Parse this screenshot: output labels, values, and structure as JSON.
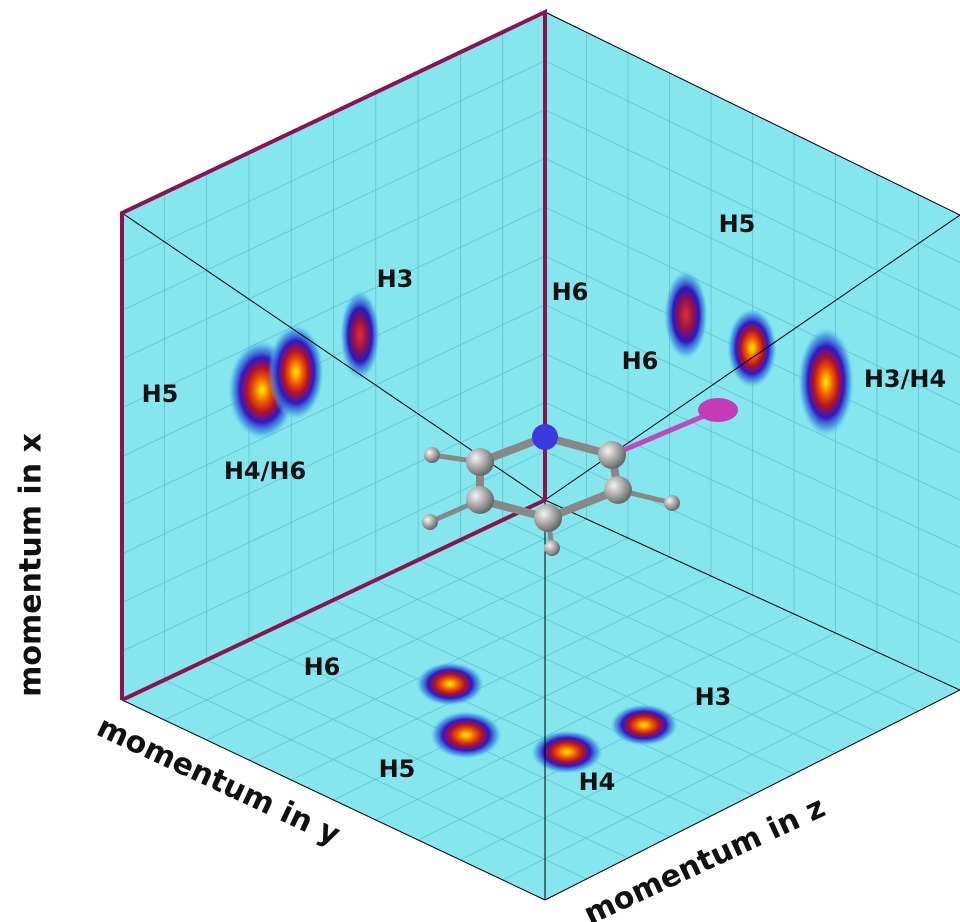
{
  "axes": {
    "x": "momentum in x",
    "y": "momentum in y",
    "z": "momentum in z"
  },
  "panels": {
    "left": [
      "H3",
      "H5",
      "H4/H6"
    ],
    "right": [
      "H5",
      "H6",
      "H6",
      "H3/H4"
    ],
    "bottom": [
      "H6",
      "H5",
      "H4",
      "H3"
    ]
  }
}
